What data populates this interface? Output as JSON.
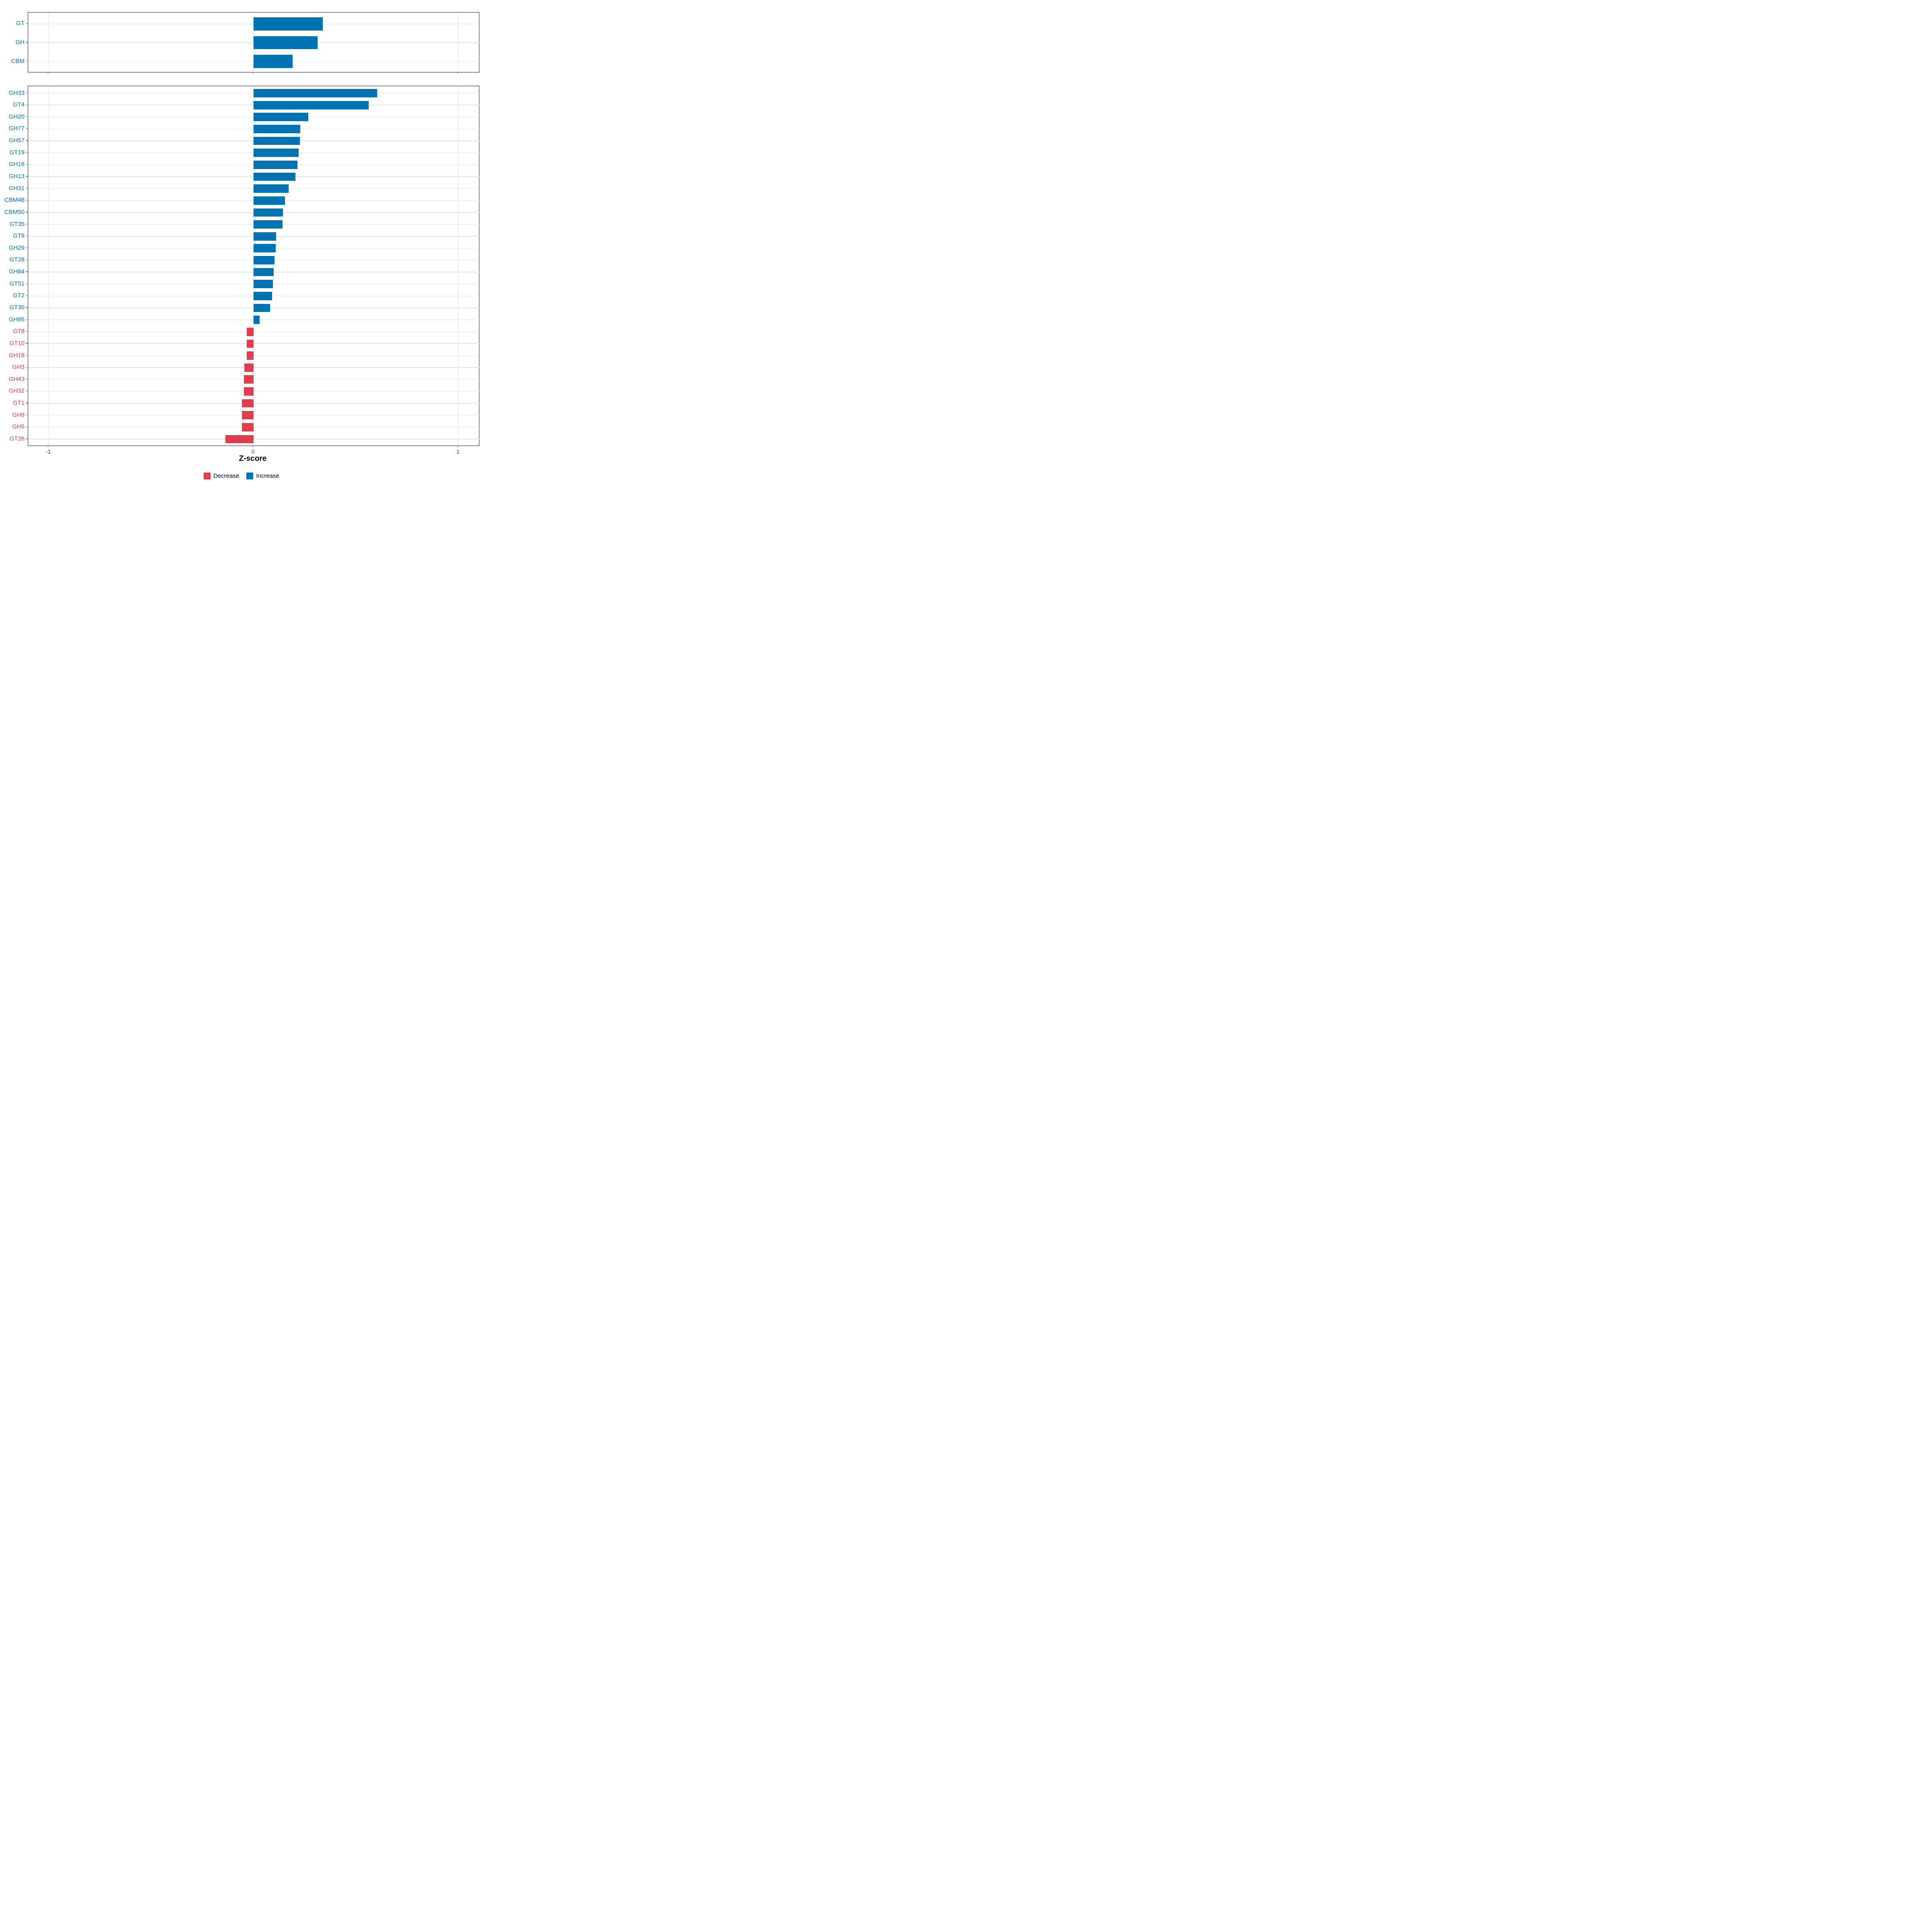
{
  "colors": {
    "increase": "#0073B3",
    "decrease": "#E13D4D",
    "grid": "#E2E2E2",
    "axis_text": "#4D4D4D",
    "tick_mark": "#333333",
    "panel_border": "#1A1A1A",
    "background": "#FFFFFF"
  },
  "xaxis": {
    "label": "Z-score",
    "ticks": [
      -1,
      0,
      1
    ],
    "tick_labels": [
      "-1",
      "0",
      "1"
    ],
    "range": [
      -1.1,
      1.105
    ],
    "grid": "on"
  },
  "legend": {
    "position": "bottom-center",
    "items": [
      {
        "label": "Decrease",
        "color_key": "decrease"
      },
      {
        "label": "Increase",
        "color_key": "increase"
      }
    ]
  },
  "chart_data": [
    {
      "type": "bar",
      "orientation": "horizontal",
      "panel": "summary",
      "categories": [
        "GT",
        "GH",
        "CBM"
      ],
      "values": [
        0.338,
        0.313,
        0.191
      ],
      "groups": [
        "increase",
        "increase",
        "increase"
      ]
    },
    {
      "type": "bar",
      "orientation": "horizontal",
      "panel": "families",
      "categories": [
        "GH33",
        "GT4",
        "GH20",
        "GH77",
        "GH57",
        "GT19",
        "GH16",
        "GH13",
        "GH31",
        "CBM48",
        "CBM50",
        "GT35",
        "GT9",
        "GH29",
        "GT28",
        "GH84",
        "GT51",
        "GT2",
        "GT30",
        "GH95",
        "GT8",
        "GT10",
        "GH18",
        "GH3",
        "GH43",
        "GH32",
        "GT1",
        "GH9",
        "GH5",
        "GT26"
      ],
      "values": [
        0.604,
        0.563,
        0.268,
        0.229,
        0.227,
        0.221,
        0.214,
        0.205,
        0.171,
        0.153,
        0.144,
        0.142,
        0.11,
        0.108,
        0.102,
        0.098,
        0.094,
        0.091,
        0.081,
        0.03,
        -0.032,
        -0.032,
        -0.033,
        -0.044,
        -0.047,
        -0.047,
        -0.057,
        -0.057,
        -0.056,
        -0.137
      ],
      "groups": [
        "increase",
        "increase",
        "increase",
        "increase",
        "increase",
        "increase",
        "increase",
        "increase",
        "increase",
        "increase",
        "increase",
        "increase",
        "increase",
        "increase",
        "increase",
        "increase",
        "increase",
        "increase",
        "increase",
        "increase",
        "decrease",
        "decrease",
        "decrease",
        "decrease",
        "decrease",
        "decrease",
        "decrease",
        "decrease",
        "decrease",
        "decrease"
      ]
    }
  ]
}
